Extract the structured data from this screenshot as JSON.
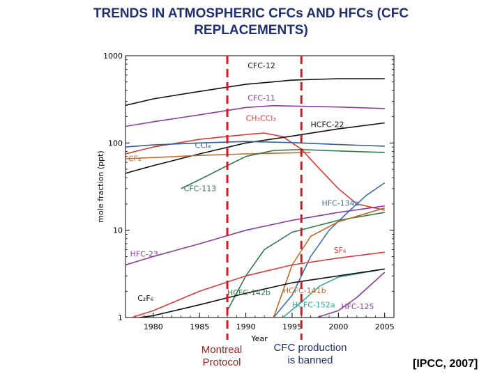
{
  "title_line1": "TRENDS IN ATMOSPHERIC CFCs AND HFCs (CFC",
  "title_line2": "REPLACEMENTS)",
  "annotations": {
    "montreal_line1": "Montreal",
    "montreal_line2": "Protocol",
    "ban_line1": "CFC production",
    "ban_line2": "is banned",
    "source": "[IPCC, 2007]"
  },
  "markers": {
    "montreal_year": 1988,
    "ban_year": 1996,
    "color": "#e0141e"
  },
  "chart_data": {
    "type": "line",
    "xlabel": "Year",
    "ylabel": "mole fraction (ppt)",
    "xlim": [
      1977,
      2006
    ],
    "ylim": [
      1,
      1000
    ],
    "yscale": "log",
    "grid": false,
    "legend": "inline labels",
    "x_ticks": [
      1980,
      1985,
      1990,
      1995,
      2000,
      2005
    ],
    "y_ticks": [
      1,
      10,
      100,
      1000
    ],
    "series": [
      {
        "name": "CFC-12",
        "color": "#111111",
        "label_pos": [
          1990.2,
          720
        ],
        "points": [
          [
            1977,
            270
          ],
          [
            1980,
            320
          ],
          [
            1985,
            390
          ],
          [
            1990,
            470
          ],
          [
            1995,
            525
          ],
          [
            2000,
            545
          ],
          [
            2005,
            545
          ]
        ]
      },
      {
        "name": "CFC-11",
        "color": "#8a3c9c",
        "label_pos": [
          1990.2,
          305
        ],
        "points": [
          [
            1977,
            155
          ],
          [
            1980,
            175
          ],
          [
            1985,
            210
          ],
          [
            1990,
            255
          ],
          [
            1993,
            268
          ],
          [
            1995,
            265
          ],
          [
            2000,
            258
          ],
          [
            2005,
            248
          ]
        ]
      },
      {
        "name": "CH₃CCl₃",
        "color": "#d93a3a",
        "label_pos": [
          1990.0,
          180
        ],
        "points": [
          [
            1977,
            75
          ],
          [
            1980,
            90
          ],
          [
            1985,
            110
          ],
          [
            1990,
            125
          ],
          [
            1992,
            130
          ],
          [
            1994,
            118
          ],
          [
            1996,
            85
          ],
          [
            1998,
            50
          ],
          [
            2000,
            30
          ],
          [
            2002,
            20
          ],
          [
            2005,
            17
          ]
        ]
      },
      {
        "name": "HCFC-22",
        "color": "#111111",
        "label_pos": [
          1997.0,
          152
        ],
        "points": [
          [
            1977,
            45
          ],
          [
            1980,
            55
          ],
          [
            1985,
            75
          ],
          [
            1990,
            100
          ],
          [
            1995,
            120
          ],
          [
            2000,
            145
          ],
          [
            2005,
            170
          ]
        ]
      },
      {
        "name": "CCl₄",
        "color": "#2f5f9a",
        "label_pos": [
          1984.5,
          88
        ],
        "points": [
          [
            1977,
            90
          ],
          [
            1980,
            95
          ],
          [
            1985,
            100
          ],
          [
            1990,
            104
          ],
          [
            1995,
            101
          ],
          [
            2000,
            96
          ],
          [
            2005,
            92
          ]
        ]
      },
      {
        "name": "CF₄",
        "color": "#c06a2a",
        "label_pos": [
          1977.3,
          62
        ],
        "points": [
          [
            1977,
            66
          ],
          [
            1980,
            68
          ],
          [
            1985,
            72
          ],
          [
            1990,
            75
          ],
          [
            1997,
            78
          ]
        ]
      },
      {
        "name": "CFC-113",
        "color": "#2f7a4a",
        "label_pos": [
          1983.3,
          28
        ],
        "points": [
          [
            1983,
            30
          ],
          [
            1985,
            38
          ],
          [
            1988,
            55
          ],
          [
            1990,
            70
          ],
          [
            1993,
            82
          ],
          [
            1996,
            84
          ],
          [
            2000,
            81
          ],
          [
            2005,
            78
          ]
        ]
      },
      {
        "name": "HFC-134a",
        "color": "#3a6fb0",
        "label_pos": [
          1998.2,
          19
        ],
        "points": [
          [
            1993,
            1
          ],
          [
            1995,
            1.8
          ],
          [
            1997,
            5
          ],
          [
            1999,
            10
          ],
          [
            2001,
            16
          ],
          [
            2003,
            25
          ],
          [
            2005,
            35
          ]
        ]
      },
      {
        "name": "HFC-23",
        "color": "#8a3c9c",
        "label_pos": [
          1977.5,
          5.0
        ],
        "points": [
          [
            1977,
            4
          ],
          [
            1980,
            5
          ],
          [
            1985,
            7
          ],
          [
            1990,
            10
          ],
          [
            1995,
            13
          ],
          [
            2000,
            16
          ],
          [
            2005,
            19
          ]
        ]
      },
      {
        "name": "HCFC-142b",
        "color": "#2f7a4a",
        "label_pos": [
          1988.0,
          1.8
        ],
        "points": [
          [
            1988,
            1.2
          ],
          [
            1990,
            3
          ],
          [
            1992,
            6
          ],
          [
            1995,
            9.5
          ],
          [
            2000,
            13
          ],
          [
            2005,
            16
          ]
        ]
      },
      {
        "name": "HCFC-141b",
        "color": "#c06a2a",
        "label_pos": [
          1994.0,
          1.9
        ],
        "points": [
          [
            1993,
            1
          ],
          [
            1994,
            2
          ],
          [
            1995,
            4
          ],
          [
            1997,
            8.5
          ],
          [
            2000,
            12.5
          ],
          [
            2005,
            18
          ]
        ]
      },
      {
        "name": "SF₆",
        "color": "#d93a3a",
        "label_pos": [
          1999.5,
          5.5
        ],
        "points": [
          [
            1977,
            0.9
          ],
          [
            1980,
            1.2
          ],
          [
            1985,
            2
          ],
          [
            1990,
            3
          ],
          [
            1995,
            4
          ],
          [
            2000,
            4.8
          ],
          [
            2005,
            5.6
          ]
        ]
      },
      {
        "name": "HCFC-152a",
        "color": "#3aa59a",
        "label_pos": [
          1995.0,
          1.3
        ],
        "points": [
          [
            1994,
            1
          ],
          [
            1996,
            1.5
          ],
          [
            1998,
            2.3
          ],
          [
            2000,
            2.9
          ],
          [
            2005,
            3.6
          ]
        ]
      },
      {
        "name": "C₂F₆",
        "color": "#111111",
        "label_pos": [
          1978.3,
          1.55
        ],
        "points": [
          [
            1977,
            0.9
          ],
          [
            1980,
            1.05
          ],
          [
            1985,
            1.4
          ],
          [
            1990,
            1.9
          ],
          [
            1995,
            2.5
          ],
          [
            2000,
            3.0
          ],
          [
            2005,
            3.6
          ]
        ]
      },
      {
        "name": "HFC-125",
        "color": "#8a3c9c",
        "label_pos": [
          2000.3,
          1.25
        ],
        "points": [
          [
            1997,
            0.9
          ],
          [
            2000,
            1.2
          ],
          [
            2002,
            1.7
          ],
          [
            2005,
            3.3
          ]
        ]
      }
    ]
  }
}
